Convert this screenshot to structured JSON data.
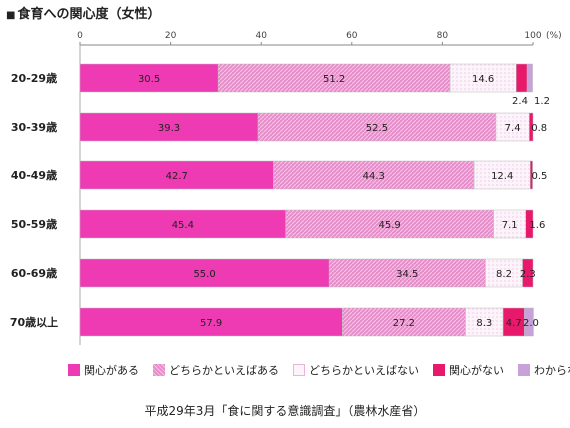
{
  "title": "食育への関心度（女性）",
  "title_marker": "■",
  "source": "平成29年3月「食に関する意識調査」（農林水産省）",
  "unit_label": "(%)",
  "colors": {
    "関心がある": "#ee3ab3",
    "どちらかといえばある": "#e58ec9",
    "どちらかといえばない": "#fdf3fa",
    "関心がない": "#e8186b",
    "わからない": "#c8a1d8"
  },
  "chart_data": {
    "type": "bar",
    "orientation": "horizontal",
    "stacked": true,
    "xlim": [
      0,
      100
    ],
    "xticks": [
      0,
      20,
      40,
      60,
      80,
      100
    ],
    "legend_position": "bottom",
    "grid": false,
    "categories": [
      "20-29歳",
      "30-39歳",
      "40-49歳",
      "50-59歳",
      "60-69歳",
      "70歳以上"
    ],
    "series": [
      {
        "name": "関心がある",
        "values": [
          30.5,
          39.3,
          42.7,
          45.4,
          55.0,
          57.9
        ],
        "labels": [
          "30.5",
          "39.3",
          "42.7",
          "45.4",
          "55.0",
          "57.9"
        ]
      },
      {
        "name": "どちらかといえばある",
        "values": [
          51.2,
          52.5,
          44.3,
          45.9,
          34.5,
          27.2
        ],
        "labels": [
          "51.2",
          "52.5",
          "44.3",
          "45.9",
          "34.5",
          "27.2"
        ]
      },
      {
        "name": "どちらかといえばない",
        "values": [
          14.6,
          7.4,
          12.4,
          7.1,
          8.2,
          8.3
        ],
        "labels": [
          "14.6",
          "7.4",
          "12.4",
          "7.1",
          "8.2",
          "8.3"
        ]
      },
      {
        "name": "関心がない",
        "values": [
          2.4,
          0.8,
          0.5,
          1.6,
          2.3,
          4.7
        ],
        "labels": [
          "2.4",
          "0.8",
          "0.5",
          "1.6",
          "2.3",
          "4.7"
        ]
      },
      {
        "name": "わからない",
        "values": [
          1.2,
          0.0,
          0.0,
          0.0,
          0.0,
          2.0
        ],
        "labels": [
          "1.2",
          "",
          "",
          "",
          "",
          "2.0"
        ]
      }
    ]
  }
}
